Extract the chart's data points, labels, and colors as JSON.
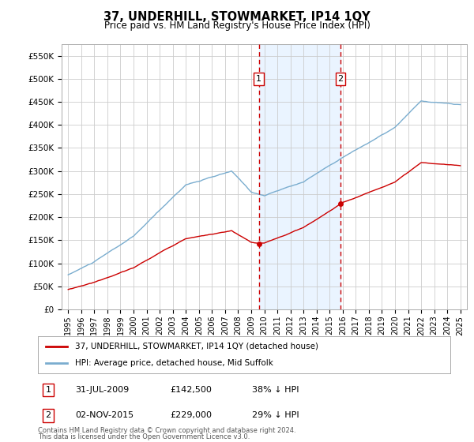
{
  "title": "37, UNDERHILL, STOWMARKET, IP14 1QY",
  "subtitle": "Price paid vs. HM Land Registry's House Price Index (HPI)",
  "legend_line1": "37, UNDERHILL, STOWMARKET, IP14 1QY (detached house)",
  "legend_line2": "HPI: Average price, detached house, Mid Suffolk",
  "footnote1": "Contains HM Land Registry data © Crown copyright and database right 2024.",
  "footnote2": "This data is licensed under the Open Government Licence v3.0.",
  "sale1_label": "1",
  "sale1_date": "31-JUL-2009",
  "sale1_price": "£142,500",
  "sale1_note": "38% ↓ HPI",
  "sale2_label": "2",
  "sale2_date": "02-NOV-2015",
  "sale2_price": "£229,000",
  "sale2_note": "29% ↓ HPI",
  "sale1_x": 2009.58,
  "sale1_y": 142500,
  "sale2_x": 2015.84,
  "sale2_y": 229000,
  "ylim": [
    0,
    575000
  ],
  "xlim": [
    1994.5,
    2025.5
  ],
  "yticks": [
    0,
    50000,
    100000,
    150000,
    200000,
    250000,
    300000,
    350000,
    400000,
    450000,
    500000,
    550000
  ],
  "xticks": [
    1995,
    1996,
    1997,
    1998,
    1999,
    2000,
    2001,
    2002,
    2003,
    2004,
    2005,
    2006,
    2007,
    2008,
    2009,
    2010,
    2011,
    2012,
    2013,
    2014,
    2015,
    2016,
    2017,
    2018,
    2019,
    2020,
    2021,
    2022,
    2023,
    2024,
    2025
  ],
  "line_red": "#cc0000",
  "line_blue": "#7aadcf",
  "bg_highlight": "#ddeeff",
  "vline_color": "#cc0000",
  "box_color": "#cc0000",
  "figsize": [
    6.0,
    5.6
  ],
  "dpi": 100
}
